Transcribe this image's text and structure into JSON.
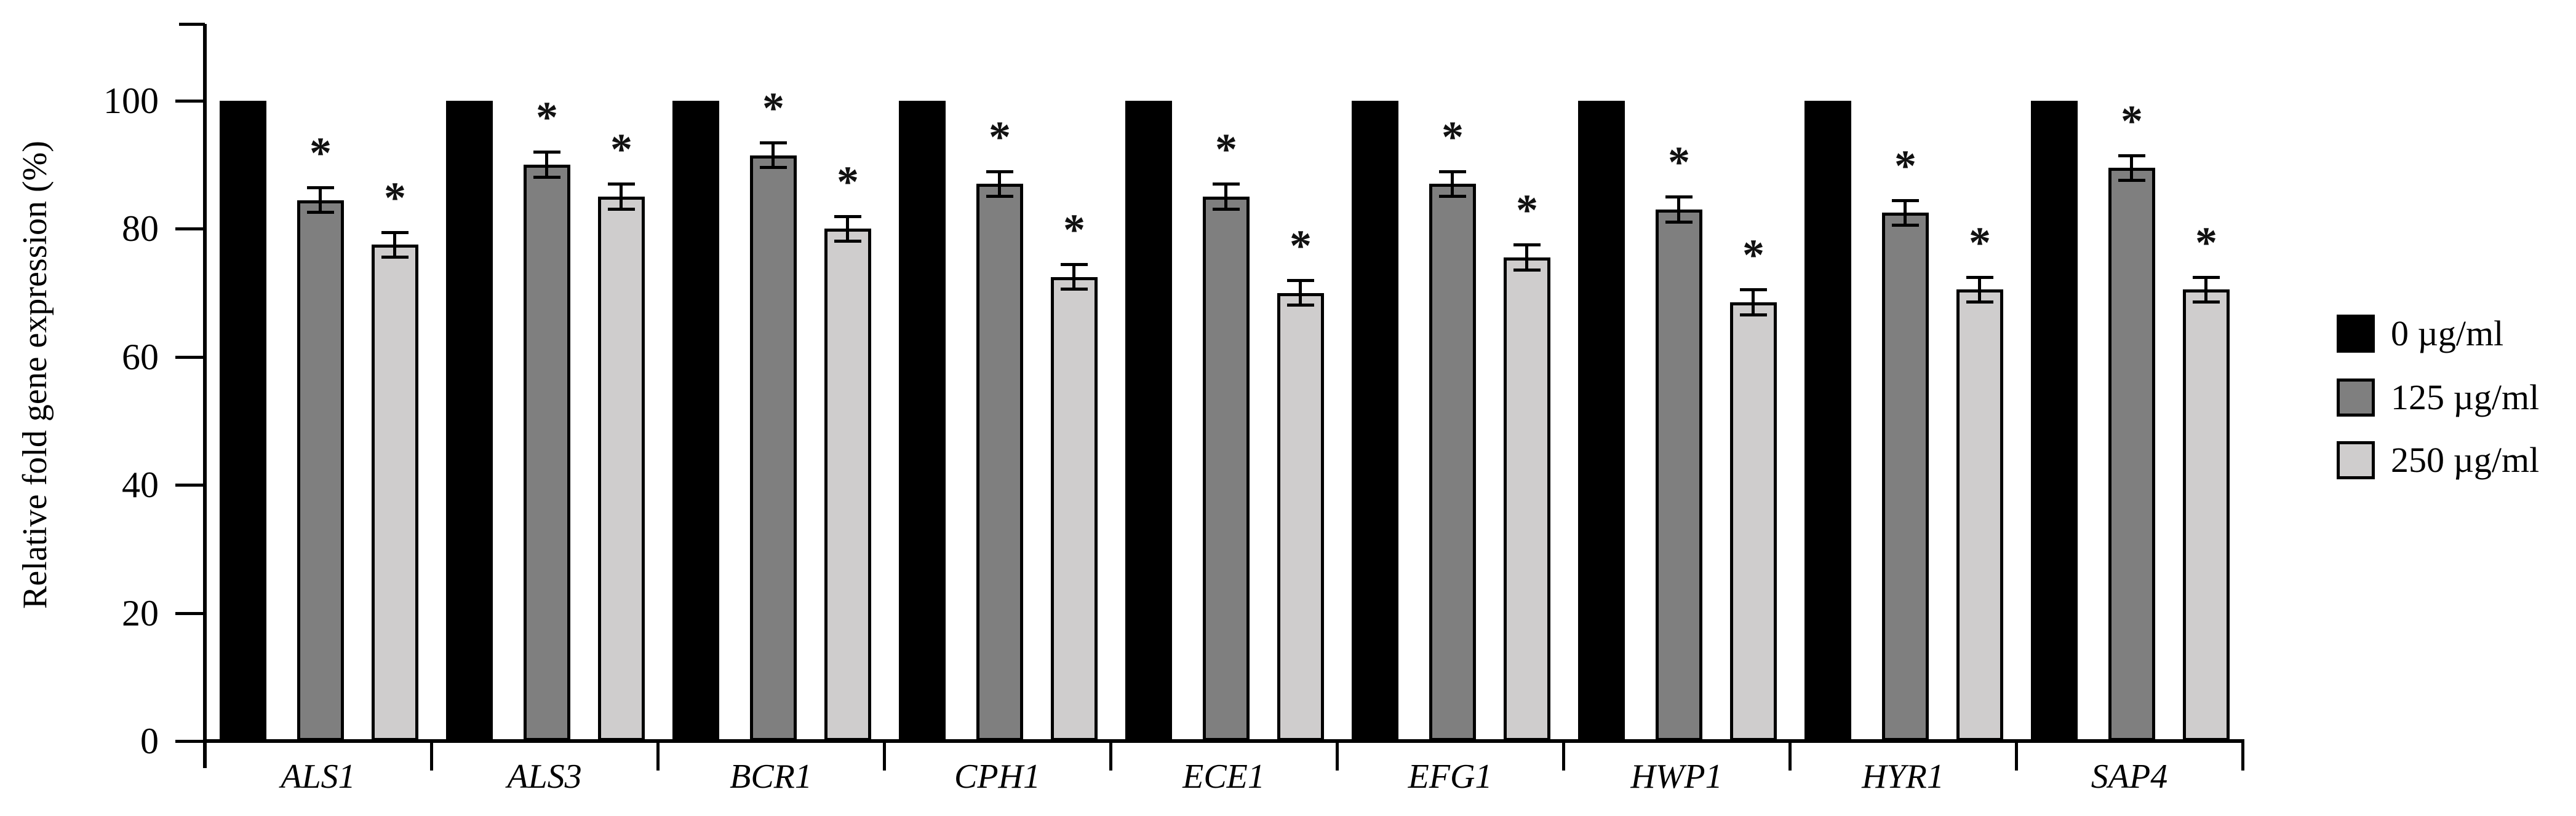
{
  "figure": {
    "background": "#ffffff"
  },
  "chart_data": {
    "type": "bar",
    "title": "",
    "ylabel": "Relative fold gene expression (%)",
    "xlabel": "",
    "ylim": [
      0,
      112
    ],
    "yticks": [
      0,
      20,
      40,
      60,
      80,
      100
    ],
    "grid": false,
    "legend_position": "right-outside",
    "significance_marker": "*",
    "categories": [
      "ALS1",
      "ALS3",
      "BCR1",
      "CPH1",
      "ECE1",
      "EFG1",
      "HWP1",
      "HYR1",
      "SAP4"
    ],
    "series": [
      {
        "name": "0 µg/ml",
        "color": "#000000",
        "values": [
          100,
          100,
          100,
          100,
          100,
          100,
          100,
          100,
          100
        ],
        "errors": [
          0,
          0,
          0,
          0,
          0,
          0,
          0,
          0,
          0
        ],
        "significant": [
          false,
          false,
          false,
          false,
          false,
          false,
          false,
          false,
          false
        ]
      },
      {
        "name": "125 µg/ml",
        "color": "#7f7f7f",
        "values": [
          84.5,
          90,
          91.5,
          87,
          85,
          87,
          83,
          82.5,
          89.5
        ],
        "errors": [
          2,
          2,
          2,
          2,
          2,
          2,
          2,
          2,
          2
        ],
        "significant": [
          true,
          true,
          true,
          true,
          true,
          true,
          true,
          true,
          true
        ]
      },
      {
        "name": "250 µg/ml",
        "color": "#cfcdcd",
        "values": [
          77.5,
          85,
          80,
          72.5,
          70,
          75.5,
          68.5,
          70.5,
          70.5
        ],
        "errors": [
          2,
          2,
          2,
          2,
          2,
          2,
          2,
          2,
          2
        ],
        "significant": [
          true,
          true,
          true,
          true,
          true,
          true,
          true,
          true,
          true
        ]
      }
    ]
  }
}
